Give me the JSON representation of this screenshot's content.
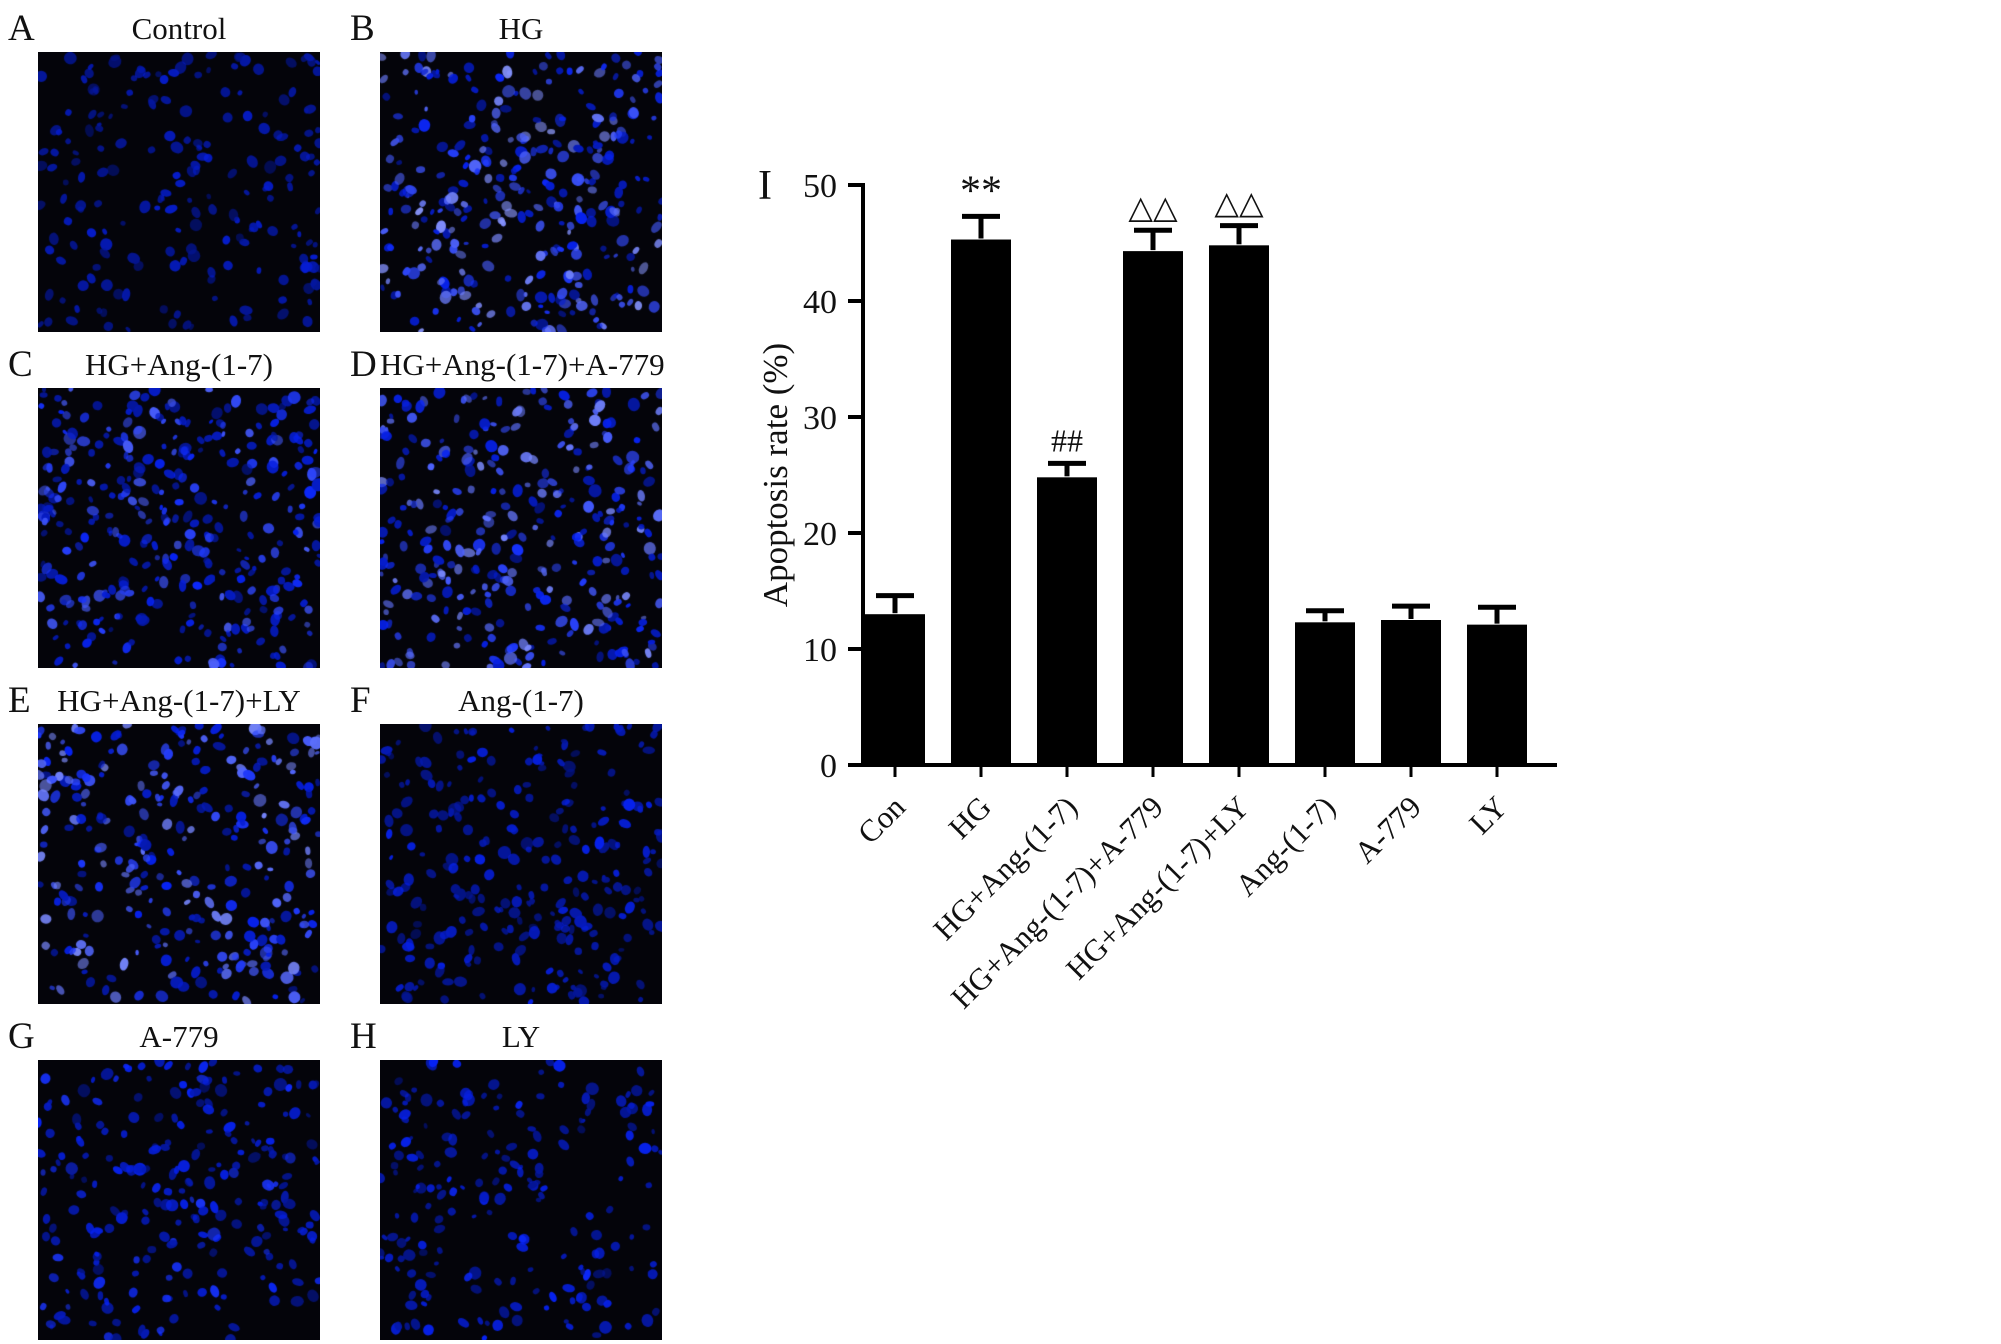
{
  "figure": {
    "chart_panel_letter": "I",
    "panels": [
      {
        "letter": "A",
        "title": "Control",
        "cells": 200,
        "brightness": 0.45
      },
      {
        "letter": "B",
        "title": "HG",
        "cells": 310,
        "brightness": 0.95
      },
      {
        "letter": "C",
        "title": "HG+Ang-(1-7)",
        "cells": 340,
        "brightness": 0.75
      },
      {
        "letter": "D",
        "title": "HG+Ang-(1-7)+A-779",
        "cells": 320,
        "brightness": 0.9
      },
      {
        "letter": "E",
        "title": "HG+Ang-(1-7)+LY",
        "cells": 300,
        "brightness": 0.9
      },
      {
        "letter": "F",
        "title": "Ang-(1-7)",
        "cells": 260,
        "brightness": 0.5
      },
      {
        "letter": "G",
        "title": "A-779",
        "cells": 240,
        "brightness": 0.6
      },
      {
        "letter": "H",
        "title": "LY",
        "cells": 200,
        "brightness": 0.55
      }
    ]
  },
  "chart_data": {
    "type": "bar",
    "title": "",
    "xlabel": "",
    "ylabel": "Apoptosis rate (%)",
    "ylim": [
      0,
      50
    ],
    "yticks": [
      0,
      10,
      20,
      30,
      40,
      50
    ],
    "grid": false,
    "legend": false,
    "bar_color": "#000000",
    "categories": [
      "Con",
      "HG",
      "HG+Ang-(1-7)",
      "HG+Ang-(1-7)+A-779",
      "HG+Ang-(1-7)+LY",
      "Ang-(1-7)",
      "A-779",
      "LY"
    ],
    "values": [
      13.0,
      45.3,
      24.8,
      44.3,
      44.8,
      12.3,
      12.5,
      12.1
    ],
    "errors": [
      1.6,
      2.0,
      1.2,
      1.8,
      1.7,
      1.0,
      1.2,
      1.5
    ],
    "annotations": [
      "",
      "**",
      "##",
      "△△",
      "△△",
      "",
      "",
      ""
    ]
  },
  "colors": {
    "background": "#ffffff",
    "nuclei_stain": "#2222dd",
    "micrograph_background": "#04040a"
  }
}
